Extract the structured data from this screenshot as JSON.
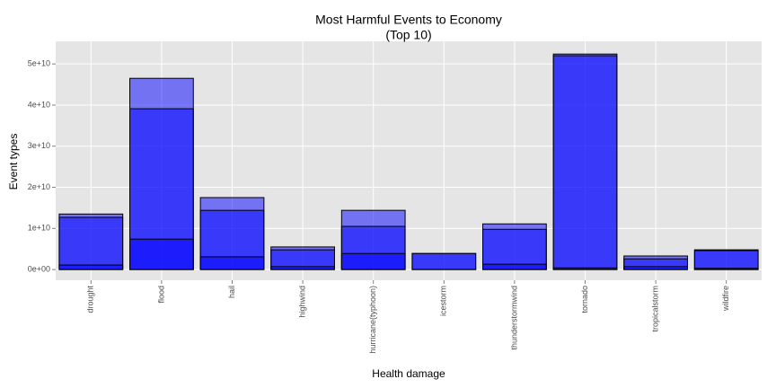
{
  "chart_data": {
    "type": "bar",
    "layout": "overlap",
    "title": "Most Harmful Events to Economy",
    "subtitle": "(Top 10)",
    "x_label": "Health damage",
    "y_label": "Event types",
    "categories": [
      "drought",
      "flood",
      "hail",
      "highwind",
      "hurricane(typhoon)",
      "icestorm",
      "thunderstormwind",
      "tornado",
      "tropicalstorm",
      "wildfire"
    ],
    "series": [
      {
        "color": "#0000ff",
        "values": [
          13500000000,
          46500000000,
          17500000000,
          5500000000,
          14400000000,
          3900000000,
          11100000000,
          52400000000,
          3300000000,
          4800000000
        ]
      },
      {
        "color": "#0000ff",
        "values": [
          12700000000,
          39100000000,
          14400000000,
          4800000000,
          10500000000,
          3900000000,
          9800000000,
          52000000000,
          2600000000,
          4600000000
        ]
      },
      {
        "color": "#0000ff",
        "values": [
          1100000000,
          7400000000,
          3100000000,
          700000000,
          3900000000,
          30000000,
          1300000000,
          400000000,
          700000000,
          300000000
        ]
      }
    ],
    "ylim": [
      -2600000000,
      55500000000
    ],
    "yticks": [
      {
        "value": 0,
        "label": "0e+00"
      },
      {
        "value": 10000000000,
        "label": "1e+10"
      },
      {
        "value": 20000000000,
        "label": "2e+10"
      },
      {
        "value": 30000000000,
        "label": "3e+10"
      },
      {
        "value": 40000000000,
        "label": "4e+10"
      },
      {
        "value": 50000000000,
        "label": "5e+10"
      }
    ],
    "grid": true
  }
}
